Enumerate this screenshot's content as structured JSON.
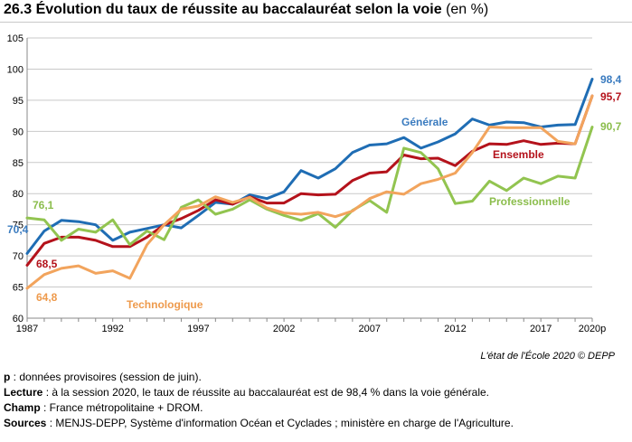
{
  "title": {
    "number": "26.3",
    "text": "Évolution du taux de réussite au baccalauréat selon la voie",
    "unit": "(en %)"
  },
  "chart_data": {
    "type": "line",
    "x": [
      1987,
      1988,
      1989,
      1990,
      1991,
      1992,
      1993,
      1994,
      1995,
      1996,
      1997,
      1998,
      1999,
      2000,
      2001,
      2002,
      2003,
      2004,
      2005,
      2006,
      2007,
      2008,
      2009,
      2010,
      2011,
      2012,
      2013,
      2014,
      2015,
      2016,
      2017,
      2018,
      2019,
      2020
    ],
    "x_tick_values": [
      1987,
      1992,
      1997,
      2002,
      2007,
      2012,
      2017,
      2020
    ],
    "x_tick_labels": [
      "1987",
      "1992",
      "1997",
      "2002",
      "2007",
      "2012",
      "2017",
      "2020p"
    ],
    "ylim": [
      60,
      105
    ],
    "y_ticks": [
      60,
      65,
      70,
      75,
      80,
      85,
      90,
      95,
      100,
      105
    ],
    "grid": "horizontal",
    "series": [
      {
        "name": "Générale",
        "color": "#1f6db4",
        "label_color": "#3a7bbf",
        "values": [
          70.4,
          74.0,
          75.7,
          75.5,
          75.0,
          72.5,
          73.8,
          74.4,
          75.0,
          74.5,
          76.5,
          78.6,
          78.3,
          79.8,
          79.2,
          80.3,
          83.7,
          82.5,
          84.0,
          86.6,
          87.8,
          88.0,
          89.0,
          87.3,
          88.3,
          89.6,
          92.0,
          91.0,
          91.5,
          91.4,
          90.7,
          91.0,
          91.1,
          98.4
        ]
      },
      {
        "name": "Ensemble",
        "color": "#b4121b",
        "label_color": "#b4121b",
        "values": [
          68.5,
          72.0,
          73.0,
          73.0,
          72.5,
          71.5,
          71.5,
          73.0,
          75.0,
          76.0,
          77.3,
          79.0,
          78.3,
          79.5,
          78.5,
          78.5,
          80.0,
          79.8,
          79.9,
          82.1,
          83.3,
          83.5,
          86.2,
          85.6,
          85.7,
          84.5,
          86.8,
          88.0,
          87.9,
          88.5,
          87.9,
          88.1,
          88.0,
          95.7
        ]
      },
      {
        "name": "Professionnelle",
        "color": "#92c450",
        "label_color": "#8bbd4c",
        "values": [
          76.1,
          75.8,
          72.5,
          74.3,
          73.8,
          75.8,
          71.8,
          74.0,
          72.6,
          77.8,
          79.0,
          76.7,
          77.5,
          79.0,
          77.5,
          76.5,
          75.7,
          76.8,
          74.6,
          77.3,
          78.9,
          77.0,
          87.3,
          86.6,
          84.0,
          78.4,
          78.8,
          82.0,
          80.5,
          82.5,
          81.6,
          82.8,
          82.5,
          90.7
        ]
      },
      {
        "name": "Technologique",
        "color": "#f2a45d",
        "label_color": "#ee9a4c",
        "values": [
          64.8,
          67.0,
          68.0,
          68.4,
          67.2,
          67.6,
          66.4,
          71.8,
          75.0,
          77.5,
          78.0,
          79.5,
          78.6,
          79.4,
          77.7,
          76.9,
          76.7,
          77.0,
          76.3,
          77.2,
          79.2,
          80.3,
          79.9,
          81.6,
          82.3,
          83.3,
          86.6,
          90.7,
          90.6,
          90.6,
          90.6,
          88.4,
          88.0,
          95.7
        ]
      }
    ],
    "annotations": {
      "generale_start": "70,4",
      "generale_end": "98,4",
      "ensemble_start": "68,5",
      "ensemble_end": "95,7",
      "pro_start": "76,1",
      "pro_end": "90,7",
      "techno_start": "64,8"
    }
  },
  "source_line": "L'état de l'École 2020 © DEPP",
  "notes": [
    {
      "label": "p",
      "text": " : données provisoires (session de juin)."
    },
    {
      "label": "Lecture",
      "text": " : à la session 2020, le taux de réussite au baccalauréat est de 98,4 % dans la voie générale."
    },
    {
      "label": "Champ",
      "text": " : France métropolitaine + DROM."
    },
    {
      "label": "Sources",
      "text": " : MENJS-DEPP, Système d'information Océan et Cyclades ; ministère en charge de l'Agriculture."
    }
  ]
}
